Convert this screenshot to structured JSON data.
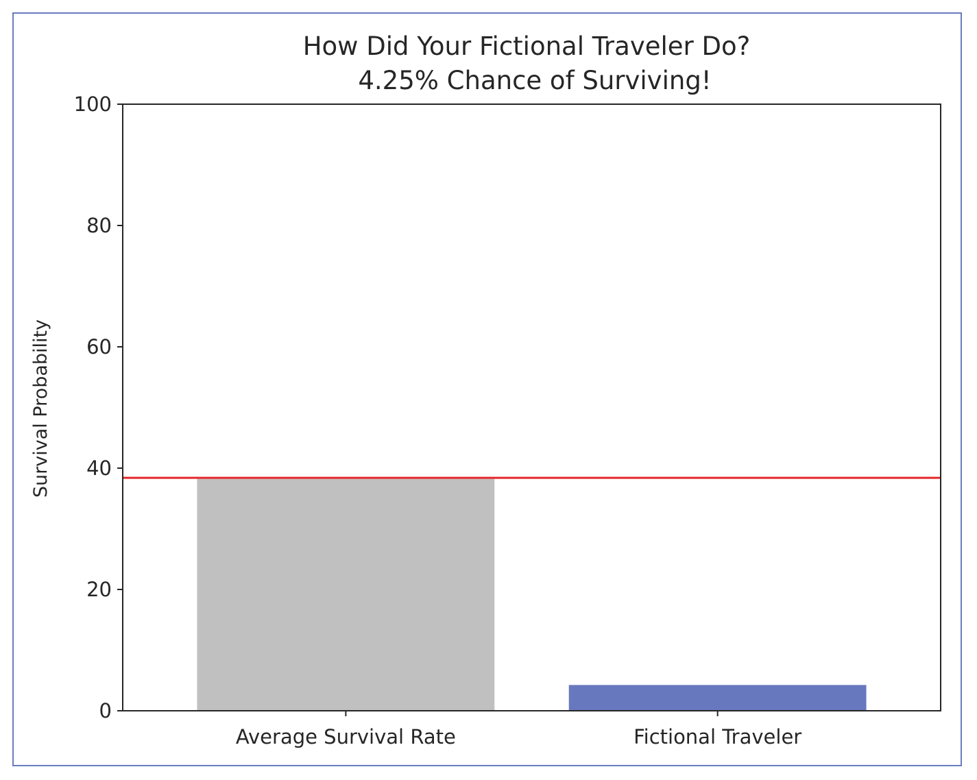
{
  "chart_data": {
    "type": "bar",
    "title": "How Did Your Fictional Traveler Do?",
    "subtitle": "4.25% Chance of Surviving!",
    "xlabel": "",
    "ylabel": "Survival Probability",
    "ylim": [
      0,
      100
    ],
    "yticks": [
      0,
      20,
      40,
      60,
      80,
      100
    ],
    "categories": [
      "Average Survival Rate",
      "Fictional Traveler"
    ],
    "values": [
      38.4,
      4.25
    ],
    "bar_colors": [
      "#c0c0c0",
      "#6878be"
    ],
    "reference_line": {
      "value": 38.4,
      "color": "#e8262b"
    },
    "grid": false,
    "frame_color": "#6a7bbf"
  }
}
